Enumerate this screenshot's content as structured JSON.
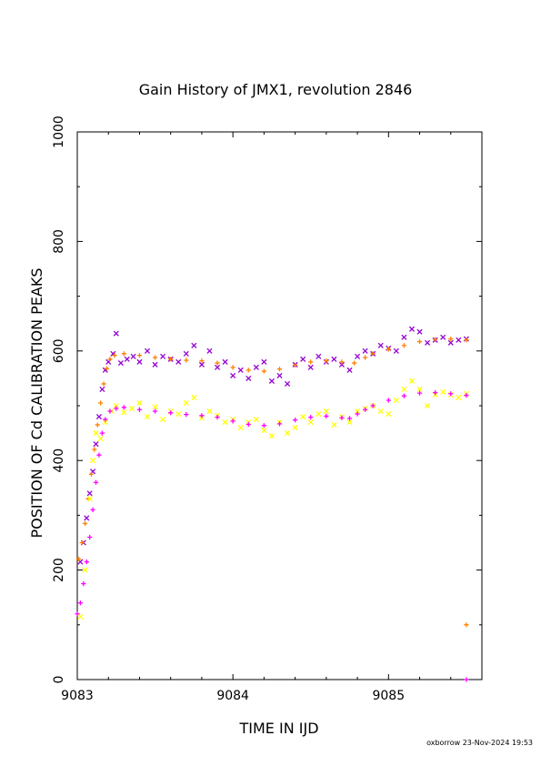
{
  "chart_data": {
    "type": "scatter",
    "title": "Gain History of JMX1, revolution 2846",
    "xlabel": "TIME IN IJD",
    "ylabel": "POSITION OF Cd CALIBRATION PEAKS",
    "xlim": [
      9083,
      9085.6
    ],
    "ylim": [
      0,
      1000
    ],
    "x_ticks": [
      9083,
      9084,
      9085
    ],
    "x_tick_labels": [
      "9083",
      "9084",
      "9085"
    ],
    "y_ticks": [
      0,
      200,
      400,
      600,
      800,
      1000
    ],
    "y_tick_labels": [
      "0",
      "200",
      "400",
      "600",
      "800",
      "1000"
    ],
    "grid": false,
    "series": [
      {
        "color": "#9400d3",
        "marker": "x",
        "points": [
          [
            9083.02,
            215
          ],
          [
            9083.04,
            250
          ],
          [
            9083.06,
            295
          ],
          [
            9083.08,
            340
          ],
          [
            9083.1,
            380
          ],
          [
            9083.12,
            430
          ],
          [
            9083.14,
            480
          ],
          [
            9083.16,
            530
          ],
          [
            9083.18,
            565
          ],
          [
            9083.2,
            580
          ],
          [
            9083.23,
            595
          ],
          [
            9083.25,
            632
          ],
          [
            9083.28,
            578
          ],
          [
            9083.32,
            585
          ],
          [
            9083.36,
            590
          ],
          [
            9083.4,
            580
          ],
          [
            9083.45,
            600
          ],
          [
            9083.5,
            575
          ],
          [
            9083.55,
            590
          ],
          [
            9083.6,
            585
          ],
          [
            9083.65,
            580
          ],
          [
            9083.7,
            595
          ],
          [
            9083.75,
            610
          ],
          [
            9083.8,
            575
          ],
          [
            9083.85,
            600
          ],
          [
            9083.9,
            570
          ],
          [
            9083.95,
            580
          ],
          [
            9084.0,
            555
          ],
          [
            9084.05,
            565
          ],
          [
            9084.1,
            550
          ],
          [
            9084.15,
            570
          ],
          [
            9084.2,
            580
          ],
          [
            9084.25,
            545
          ],
          [
            9084.3,
            555
          ],
          [
            9084.35,
            540
          ],
          [
            9084.4,
            575
          ],
          [
            9084.45,
            585
          ],
          [
            9084.5,
            570
          ],
          [
            9084.55,
            590
          ],
          [
            9084.6,
            580
          ],
          [
            9084.65,
            585
          ],
          [
            9084.7,
            575
          ],
          [
            9084.75,
            565
          ],
          [
            9084.8,
            590
          ],
          [
            9084.85,
            600
          ],
          [
            9084.9,
            595
          ],
          [
            9084.95,
            610
          ],
          [
            9085.0,
            605
          ],
          [
            9085.05,
            600
          ],
          [
            9085.1,
            625
          ],
          [
            9085.15,
            640
          ],
          [
            9085.2,
            635
          ],
          [
            9085.25,
            615
          ],
          [
            9085.3,
            620
          ],
          [
            9085.35,
            625
          ],
          [
            9085.4,
            615
          ],
          [
            9085.45,
            620
          ],
          [
            9085.5,
            622
          ]
        ]
      },
      {
        "color": "#ff8000",
        "marker": "+",
        "points": [
          [
            9083.01,
            220
          ],
          [
            9083.03,
            250
          ],
          [
            9083.05,
            285
          ],
          [
            9083.07,
            330
          ],
          [
            9083.09,
            375
          ],
          [
            9083.11,
            420
          ],
          [
            9083.13,
            465
          ],
          [
            9083.15,
            505
          ],
          [
            9083.17,
            540
          ],
          [
            9083.19,
            568
          ],
          [
            9083.21,
            585
          ],
          [
            9083.24,
            592
          ],
          [
            9083.3,
            595
          ],
          [
            9083.4,
            592
          ],
          [
            9083.5,
            588
          ],
          [
            9083.6,
            585
          ],
          [
            9083.7,
            583
          ],
          [
            9083.8,
            582
          ],
          [
            9083.9,
            578
          ],
          [
            9084.0,
            570
          ],
          [
            9084.1,
            565
          ],
          [
            9084.2,
            563
          ],
          [
            9084.3,
            567
          ],
          [
            9084.4,
            574
          ],
          [
            9084.5,
            580
          ],
          [
            9084.6,
            582
          ],
          [
            9084.7,
            580
          ],
          [
            9084.78,
            578
          ],
          [
            9084.85,
            588
          ],
          [
            9084.9,
            595
          ],
          [
            9085.0,
            603
          ],
          [
            9085.1,
            610
          ],
          [
            9085.2,
            617
          ],
          [
            9085.3,
            621
          ],
          [
            9085.4,
            622
          ],
          [
            9085.5,
            620
          ],
          [
            9085.5,
            100
          ]
        ]
      },
      {
        "color": "#ffff00",
        "marker": "x",
        "points": [
          [
            9083.02,
            115
          ],
          [
            9083.05,
            200
          ],
          [
            9083.08,
            330
          ],
          [
            9083.1,
            400
          ],
          [
            9083.12,
            450
          ],
          [
            9083.15,
            440
          ],
          [
            9083.18,
            470
          ],
          [
            9083.22,
            490
          ],
          [
            9083.25,
            500
          ],
          [
            9083.3,
            488
          ],
          [
            9083.35,
            495
          ],
          [
            9083.4,
            505
          ],
          [
            9083.45,
            480
          ],
          [
            9083.5,
            498
          ],
          [
            9083.55,
            475
          ],
          [
            9083.6,
            490
          ],
          [
            9083.65,
            485
          ],
          [
            9083.7,
            505
          ],
          [
            9083.75,
            515
          ],
          [
            9083.8,
            478
          ],
          [
            9083.85,
            490
          ],
          [
            9083.9,
            482
          ],
          [
            9083.95,
            470
          ],
          [
            9084.0,
            475
          ],
          [
            9084.05,
            460
          ],
          [
            9084.1,
            470
          ],
          [
            9084.15,
            475
          ],
          [
            9084.2,
            455
          ],
          [
            9084.25,
            445
          ],
          [
            9084.3,
            470
          ],
          [
            9084.35,
            450
          ],
          [
            9084.4,
            460
          ],
          [
            9084.45,
            480
          ],
          [
            9084.5,
            470
          ],
          [
            9084.55,
            485
          ],
          [
            9084.6,
            490
          ],
          [
            9084.65,
            465
          ],
          [
            9084.7,
            480
          ],
          [
            9084.75,
            470
          ],
          [
            9084.8,
            490
          ],
          [
            9084.85,
            495
          ],
          [
            9084.9,
            500
          ],
          [
            9084.95,
            490
          ],
          [
            9085.0,
            485
          ],
          [
            9085.05,
            510
          ],
          [
            9085.1,
            530
          ],
          [
            9085.15,
            545
          ],
          [
            9085.2,
            530
          ],
          [
            9085.25,
            500
          ],
          [
            9085.3,
            520
          ],
          [
            9085.35,
            525
          ],
          [
            9085.4,
            520
          ],
          [
            9085.45,
            515
          ],
          [
            9085.5,
            522
          ]
        ]
      },
      {
        "color": "#ff00ff",
        "marker": "+",
        "points": [
          [
            9083.0,
            120
          ],
          [
            9083.02,
            140
          ],
          [
            9083.04,
            175
          ],
          [
            9083.06,
            215
          ],
          [
            9083.08,
            260
          ],
          [
            9083.1,
            310
          ],
          [
            9083.12,
            360
          ],
          [
            9083.14,
            410
          ],
          [
            9083.16,
            450
          ],
          [
            9083.18,
            475
          ],
          [
            9083.21,
            490
          ],
          [
            9083.25,
            495
          ],
          [
            9083.3,
            497
          ],
          [
            9083.4,
            493
          ],
          [
            9083.5,
            490
          ],
          [
            9083.6,
            487
          ],
          [
            9083.7,
            484
          ],
          [
            9083.8,
            482
          ],
          [
            9083.9,
            479
          ],
          [
            9084.0,
            472
          ],
          [
            9084.1,
            466
          ],
          [
            9084.2,
            464
          ],
          [
            9084.3,
            467
          ],
          [
            9084.4,
            474
          ],
          [
            9084.5,
            479
          ],
          [
            9084.6,
            481
          ],
          [
            9084.7,
            478
          ],
          [
            9084.75,
            477
          ],
          [
            9084.8,
            485
          ],
          [
            9084.85,
            493
          ],
          [
            9084.9,
            500
          ],
          [
            9085.0,
            510
          ],
          [
            9085.1,
            518
          ],
          [
            9085.2,
            523
          ],
          [
            9085.3,
            524
          ],
          [
            9085.4,
            522
          ],
          [
            9085.5,
            519
          ],
          [
            9085.5,
            0
          ]
        ]
      }
    ],
    "footer": "oxborrow 23-Nov-2024 19:53"
  }
}
